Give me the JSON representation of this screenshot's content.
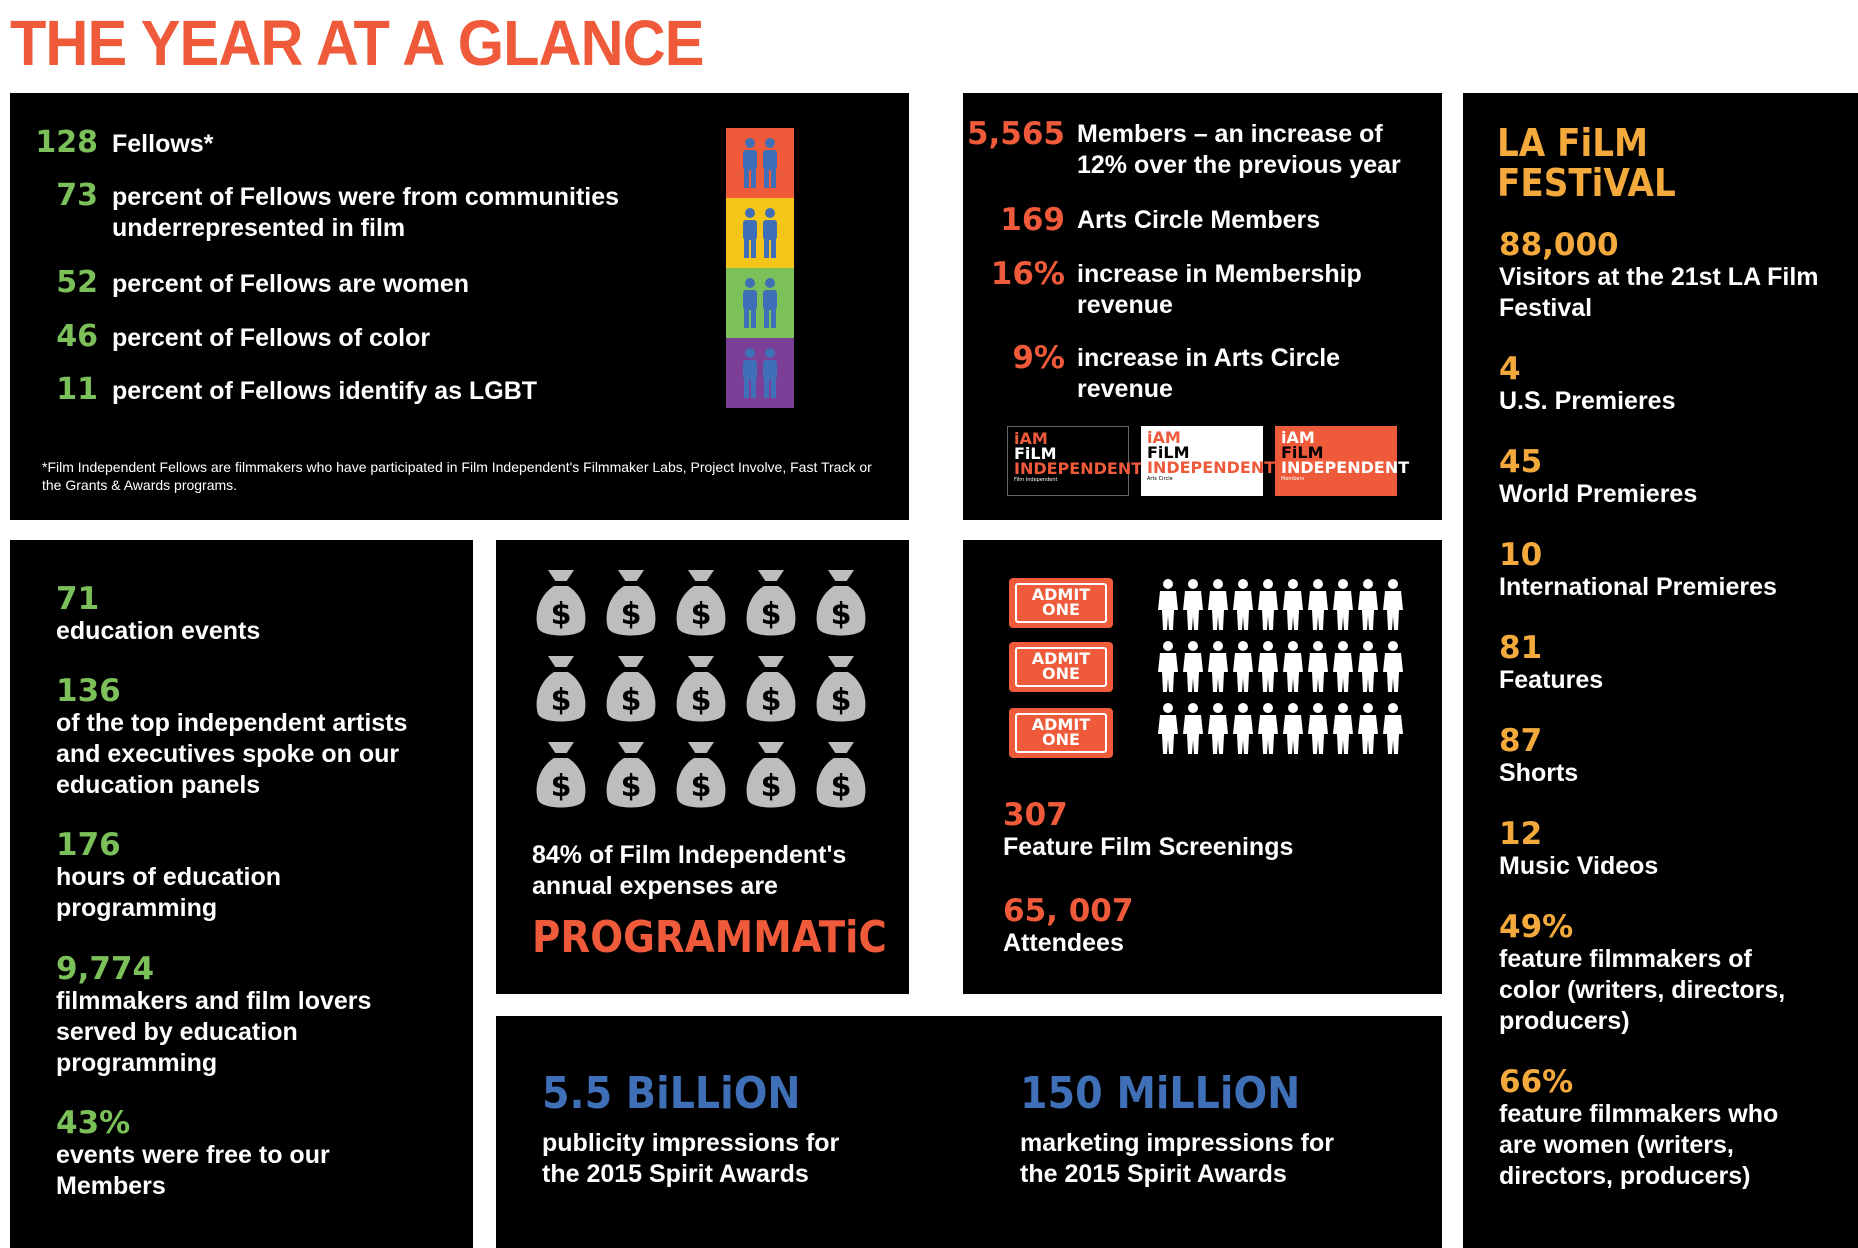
{
  "title": "THE YEAR AT A GLANCE",
  "colors": {
    "red": "#ee5a3a",
    "green": "#7cc05a",
    "orange": "#f3a93c",
    "blue": "#3f6fb6",
    "yellow": "#f6c51a",
    "purple": "#7b3f97"
  },
  "fellows": {
    "rows": [
      {
        "value": "128",
        "label": "Fellows*"
      },
      {
        "value": "73",
        "label": "percent of Fellows were from communities underrepresented in film"
      },
      {
        "value": "52",
        "label": "percent of Fellows are women"
      },
      {
        "value": "46",
        "label": "percent of Fellows of color"
      },
      {
        "value": "11",
        "label": "percent of Fellows identify as LGBT"
      }
    ],
    "footnote": "*Film Independent Fellows are filmmakers who have participated in Film Independent's Filmmaker Labs, Project Involve, Fast Track or the Grants & Awards programs.",
    "icon": "couple-icon"
  },
  "members": {
    "rows": [
      {
        "value": "5,565",
        "label": "Members – an increase of 12% over the previous year"
      },
      {
        "value": "169",
        "label": "Arts Circle Members"
      },
      {
        "value": "16%",
        "label": "increase in Membership revenue"
      },
      {
        "value": "9%",
        "label": "increase in Arts Circle revenue"
      }
    ],
    "logos": [
      {
        "line1": "iAM",
        "line2": "FiLM",
        "line3": "INDEPENDENT",
        "sub": "Film Independent"
      },
      {
        "line1": "iAM",
        "line2": "FiLM",
        "line3": "INDEPENDENT",
        "sub": "Arts Circle"
      },
      {
        "line1": "iAM",
        "line2": "FiLM",
        "line3": "INDEPENDENT",
        "sub": "Members"
      }
    ]
  },
  "festival": {
    "logo_line1": "LA FiLM",
    "logo_line2": "FESTiVAL",
    "stats": [
      {
        "value": "88,000",
        "label": "Visitors at the 21st LA Film Festival"
      },
      {
        "value": "4",
        "label": "U.S. Premieres"
      },
      {
        "value": "45",
        "label": "World Premieres"
      },
      {
        "value": "10",
        "label": "International Premieres"
      },
      {
        "value": "81",
        "label": "Features"
      },
      {
        "value": "87",
        "label": "Shorts"
      },
      {
        "value": "12",
        "label": "Music Videos"
      },
      {
        "value": "49%",
        "label": "feature filmmakers of color (writers, directors, producers)"
      },
      {
        "value": "66%",
        "label": "feature filmmakers who are women (writers, directors, producers)"
      }
    ]
  },
  "education": {
    "stats": [
      {
        "value": "71",
        "label": "education events"
      },
      {
        "value": "136",
        "label": "of the top independent artists and executives spoke on our education panels"
      },
      {
        "value": "176",
        "label": "hours of education programming"
      },
      {
        "value": "9,774",
        "label": "filmmakers and film lovers served by education programming"
      },
      {
        "value": "43%",
        "label": "events were free to our Members"
      }
    ]
  },
  "expenses": {
    "icon": "money-bag-icon",
    "text": "84% of Film Independent's annual expenses are",
    "highlight": "PROGRAMMATiC"
  },
  "screenings": {
    "ticket_line1": "ADMIT",
    "ticket_line2": "ONE",
    "icon": "person-icon",
    "stats": [
      {
        "value": "307",
        "label": "Feature Film Screenings"
      },
      {
        "value": "65, 007",
        "label": "Attendees"
      }
    ]
  },
  "impressions": [
    {
      "value": "5.5 BiLLiON",
      "label": "publicity impressions for the 2015 Spirit Awards"
    },
    {
      "value": "150 MiLLiON",
      "label": "marketing impressions for the 2015 Spirit Awards"
    }
  ]
}
